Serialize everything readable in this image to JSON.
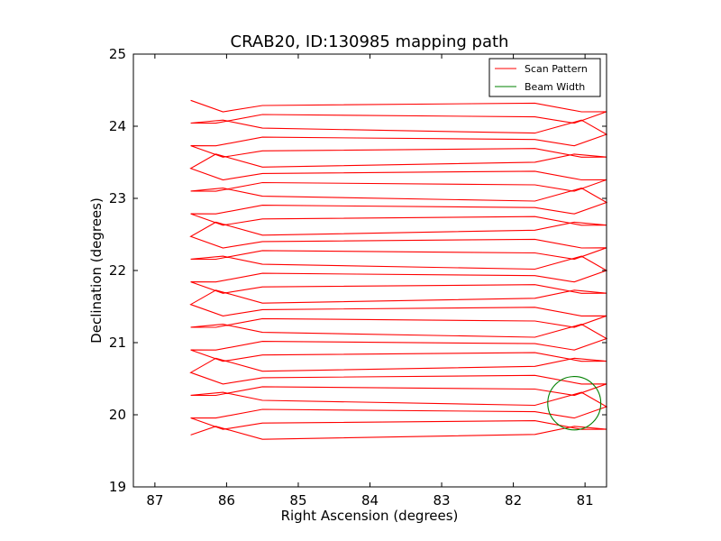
{
  "chart_data": {
    "type": "line",
    "title": "CRAB20, ID:130985 mapping path",
    "xlabel": "Right Ascension (degrees)",
    "ylabel": "Declination (degrees)",
    "xlim": [
      87.3,
      80.7
    ],
    "ylim": [
      19,
      25
    ],
    "x_inverted": true,
    "xticks": [
      87,
      86,
      85,
      84,
      83,
      82,
      81
    ],
    "xtick_labels": [
      "87",
      "86",
      "85",
      "84",
      "83",
      "82",
      "81"
    ],
    "yticks": [
      19,
      20,
      21,
      22,
      23,
      24,
      25
    ],
    "ytick_labels": [
      "19",
      "20",
      "21",
      "22",
      "23",
      "24",
      "25"
    ],
    "grid": false,
    "legend": {
      "position": "top-right",
      "entries": [
        {
          "label": "Scan Pattern",
          "color": "#ff0000"
        },
        {
          "label": "Beam Width",
          "color": "#008000"
        }
      ]
    },
    "series": [
      {
        "name": "Scan Pattern",
        "color": "#ff0000",
        "kind": "scan",
        "ra_left": 86.5,
        "ra_right": 80.7,
        "dec_start": 19.72,
        "dec_end": 24.28,
        "n_passes": 30
      },
      {
        "name": "Beam Width",
        "color": "#008000",
        "kind": "circle",
        "center": [
          81.15,
          20.16
        ],
        "radius_deg": 0.37
      }
    ]
  }
}
